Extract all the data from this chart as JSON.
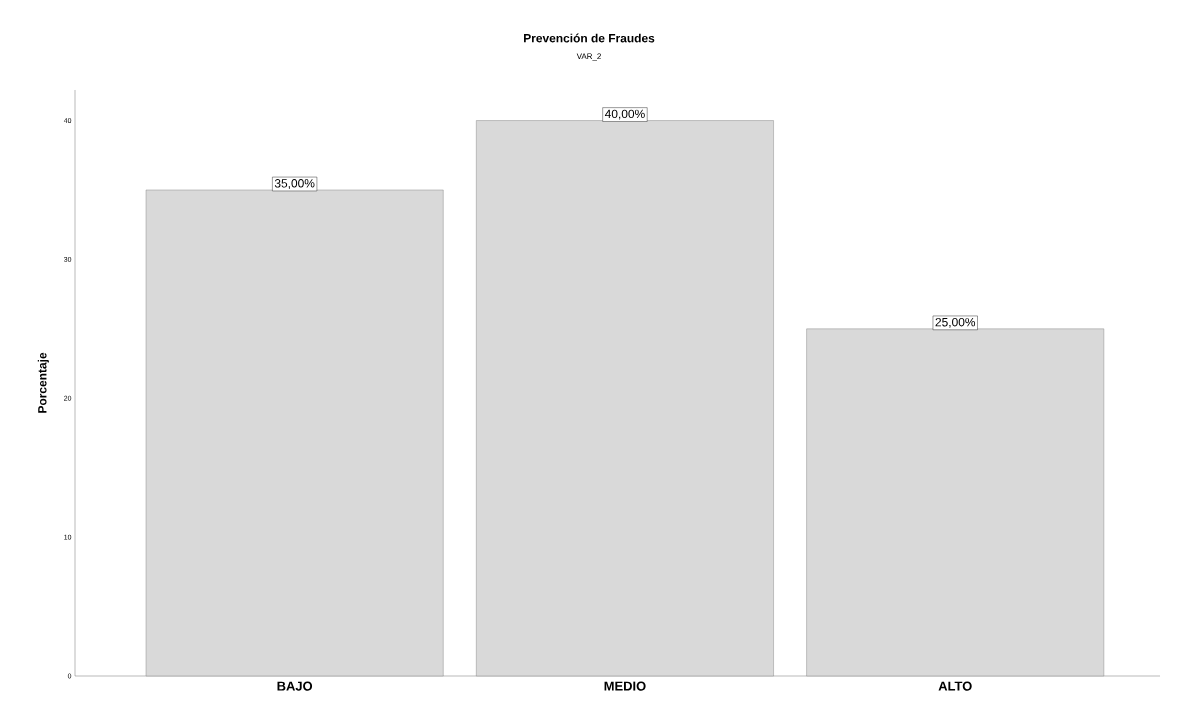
{
  "chart_data": {
    "type": "bar",
    "title": "Prevención de Fraudes",
    "subtitle": "VAR_2",
    "ylabel": "Porcentaje",
    "categories": [
      "BAJO",
      "MEDIO",
      "ALTO"
    ],
    "values": [
      35,
      40,
      25
    ],
    "value_labels": [
      "35,00%",
      "40,00%",
      "25,00%"
    ],
    "color": "#d9d9d9",
    "ylim": [
      0,
      42.2
    ],
    "yticks": [
      0,
      10,
      20,
      30,
      40
    ]
  }
}
